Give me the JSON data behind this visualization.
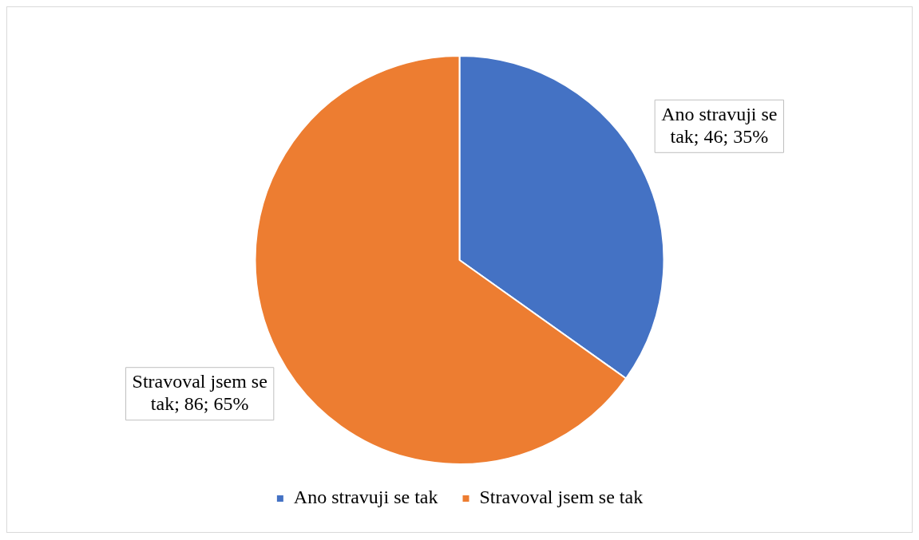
{
  "chart_data": {
    "type": "pie",
    "categories": [
      "Ano stravuji se tak",
      "Stravoval jsem se tak"
    ],
    "values": [
      46,
      86
    ],
    "colors": [
      "#4472c4",
      "#ed7d31"
    ],
    "value_labels": [
      "Ano stravuji se tak; 46; 35%",
      "Stravoval jsem se tak; 86; 65%"
    ],
    "legend": "bottom"
  }
}
